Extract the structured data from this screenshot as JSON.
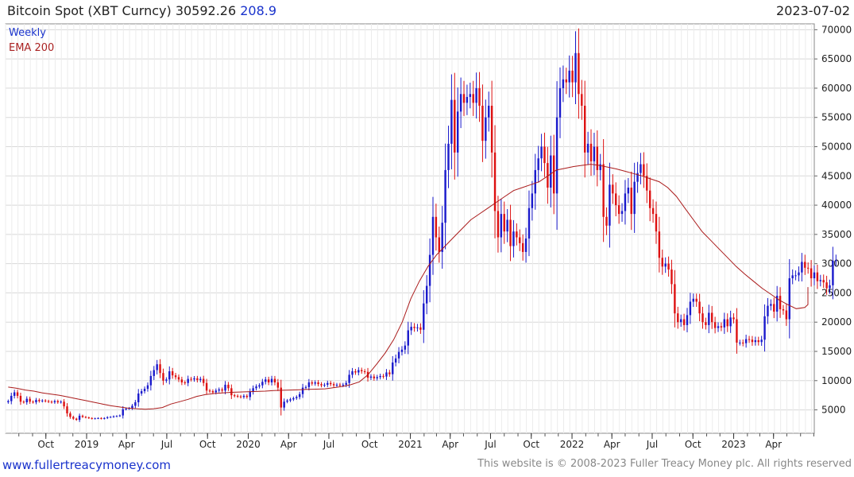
{
  "header": {
    "title": "Bitcoin Spot (XBT Curncy)",
    "last": "30592.26",
    "change": "208.9",
    "date": "2023-07-02"
  },
  "footer": {
    "url": "www.fullertreacymoney.com",
    "copyright": "This website is © 2008-2023 Fuller Treacy Money plc. All rights reserved"
  },
  "colors": {
    "up": "#1a1acc",
    "down": "#dd1111",
    "ema": "#aa1a1a",
    "grid": "#d8d8d8",
    "legend_weekly": "#1a33cc",
    "legend_ema": "#aa2222"
  },
  "chart_data": {
    "type": "candlestick",
    "frequency": "Weekly",
    "x_start": "2018-07-02",
    "x_end": "2023-07-02",
    "ylim": [
      1000,
      71000
    ],
    "yticks": [
      5000,
      10000,
      15000,
      20000,
      25000,
      30000,
      35000,
      40000,
      45000,
      50000,
      55000,
      60000,
      65000,
      70000
    ],
    "xticks": [
      {
        "label": "Oct",
        "date": "2018-10-01"
      },
      {
        "label": "2019",
        "date": "2019-01-01"
      },
      {
        "label": "Apr",
        "date": "2019-04-01"
      },
      {
        "label": "Jul",
        "date": "2019-07-01"
      },
      {
        "label": "Oct",
        "date": "2019-10-01"
      },
      {
        "label": "2020",
        "date": "2020-01-01"
      },
      {
        "label": "Apr",
        "date": "2020-04-01"
      },
      {
        "label": "Jul",
        "date": "2020-07-01"
      },
      {
        "label": "Oct",
        "date": "2020-10-01"
      },
      {
        "label": "2021",
        "date": "2021-01-01"
      },
      {
        "label": "Apr",
        "date": "2021-04-01"
      },
      {
        "label": "Jul",
        "date": "2021-07-01"
      },
      {
        "label": "Oct",
        "date": "2021-10-01"
      },
      {
        "label": "2022",
        "date": "2022-01-01"
      },
      {
        "label": "Apr",
        "date": "2022-04-01"
      },
      {
        "label": "Jul",
        "date": "2022-07-01"
      },
      {
        "label": "Oct",
        "date": "2022-10-01"
      },
      {
        "label": "2023",
        "date": "2023-01-01"
      },
      {
        "label": "Apr",
        "date": "2023-04-01"
      }
    ],
    "legend": [
      "Weekly",
      "EMA 200"
    ],
    "price_close": [
      6500,
      7400,
      8000,
      7400,
      6400,
      6300,
      6900,
      6400,
      6300,
      6700,
      6500,
      6600,
      6500,
      6400,
      6300,
      6500,
      6300,
      6400,
      5600,
      4400,
      3800,
      3500,
      3300,
      4000,
      3800,
      3700,
      3600,
      3500,
      3550,
      3600,
      3500,
      3600,
      3750,
      3800,
      3900,
      3950,
      4050,
      5100,
      5200,
      5300,
      5700,
      6300,
      7800,
      8200,
      8600,
      9200,
      10800,
      11800,
      12800,
      11300,
      10000,
      10200,
      11600,
      10900,
      10600,
      10200,
      9700,
      9600,
      10300,
      10200,
      10400,
      10100,
      10300,
      9600,
      8300,
      8200,
      8000,
      8300,
      8500,
      8300,
      9300,
      8700,
      7500,
      7400,
      7300,
      7200,
      7400,
      7200,
      8100,
      8700,
      9000,
      9200,
      9800,
      10200,
      9700,
      10300,
      9700,
      8800,
      5400,
      6400,
      6600,
      6800,
      7000,
      7200,
      7700,
      8800,
      8900,
      9700,
      9500,
      9700,
      9400,
      9200,
      9300,
      9600,
      9400,
      9200,
      9300,
      9200,
      9300,
      9600,
      11000,
      11600,
      11400,
      11800,
      11600,
      11500,
      10500,
      10700,
      10400,
      10600,
      10800,
      10700,
      11400,
      11100,
      13100,
      13800,
      14900,
      15300,
      16000,
      18600,
      19200,
      19000,
      19100,
      18700,
      23200,
      26200,
      31500,
      38000,
      34500,
      32000,
      37000,
      46000,
      50500,
      58000,
      49000,
      56000,
      59000,
      57500,
      58500,
      59000,
      57500,
      60000,
      57000,
      51000,
      55000,
      57000,
      49000,
      39000,
      34500,
      38500,
      35500,
      37500,
      33000,
      35500,
      34500,
      33500,
      32000,
      34300,
      39500,
      42000,
      46000,
      48000,
      50000,
      47200,
      43000,
      48500,
      42000,
      55000,
      60000,
      61500,
      61000,
      63000,
      61000,
      66000,
      59000,
      57000,
      49000,
      50500,
      47500,
      50000,
      46000,
      47000,
      38000,
      36500,
      43500,
      42000,
      40000,
      38500,
      39000,
      42000,
      43000,
      38500,
      44000,
      45500,
      47000,
      45000,
      42500,
      39500,
      38500,
      35500,
      31000,
      29500,
      30000,
      29000,
      26500,
      21500,
      20000,
      20500,
      19500,
      21200,
      23500,
      24000,
      23500,
      21500,
      20000,
      19500,
      21600,
      20000,
      19000,
      19300,
      19100,
      20500,
      19300,
      20800,
      20500,
      16500,
      16500,
      16400,
      17100,
      17000,
      16600,
      16900,
      16600,
      17000,
      21000,
      22800,
      23100,
      21800,
      24500,
      22200,
      22000,
      20500,
      27500,
      28000,
      28000,
      28500,
      30300,
      29300,
      29200,
      27500,
      28500,
      27000,
      27200,
      26800,
      25800,
      26300,
      30500,
      30592
    ],
    "ema_200_series": [
      8900,
      8700,
      8400,
      8200,
      7900,
      7700,
      7500,
      7200,
      6900,
      6600,
      6300,
      6000,
      5700,
      5500,
      5300,
      5200,
      5100,
      5200,
      5400,
      6000,
      6400,
      6800,
      7300,
      7600,
      7800,
      7900,
      8000,
      8050,
      8100,
      8150,
      8200,
      8300,
      8350,
      8400,
      8450,
      8500,
      8550,
      8600,
      8800,
      9000,
      9300,
      9800,
      11000,
      12800,
      14700,
      17000,
      20000,
      24000,
      27000,
      29500,
      31500,
      33000,
      34500,
      36000,
      37500,
      38500,
      39500,
      40500,
      41500,
      42500,
      43000,
      43500,
      44000,
      45000,
      46000,
      46300,
      46600,
      46800,
      47000,
      46800,
      46500,
      46200,
      45800,
      45400,
      45000,
      44500,
      44000,
      43000,
      41500,
      39500,
      37500,
      35500,
      34000,
      32500,
      31000,
      29500,
      28200,
      27000,
      25800,
      24800,
      23800,
      23000,
      22300,
      22500,
      23000,
      24000,
      25000,
      26000
    ],
    "ema_200_dates_note": "placeholder"
  }
}
